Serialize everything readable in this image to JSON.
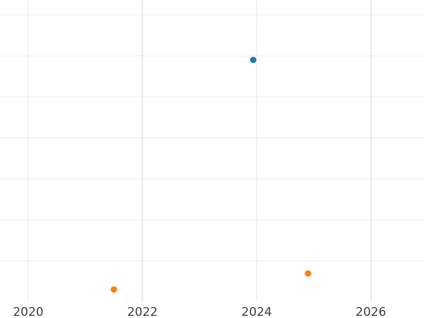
{
  "chart_data": {
    "type": "scatter",
    "title": "",
    "xlabel": "",
    "ylabel": "",
    "xlim": [
      2019.5,
      2026.9
    ],
    "ylim": [
      -1.0,
      6.3
    ],
    "x_ticks": [
      "2020",
      "2022",
      "2024",
      "2026"
    ],
    "x_tick_values": [
      2020,
      2022,
      2024,
      2026
    ],
    "y_grid_values": [
      0,
      1,
      2,
      3,
      4,
      5,
      6
    ],
    "grid": true,
    "legend": "none",
    "series": [
      {
        "color": "#1f77b4",
        "points": [
          {
            "x": 2023.94,
            "y": 4.9
          }
        ]
      },
      {
        "color": "#ff7f0e",
        "points": [
          {
            "x": 2021.5,
            "y": -0.7
          },
          {
            "x": 2024.9,
            "y": -0.31
          }
        ]
      }
    ]
  }
}
